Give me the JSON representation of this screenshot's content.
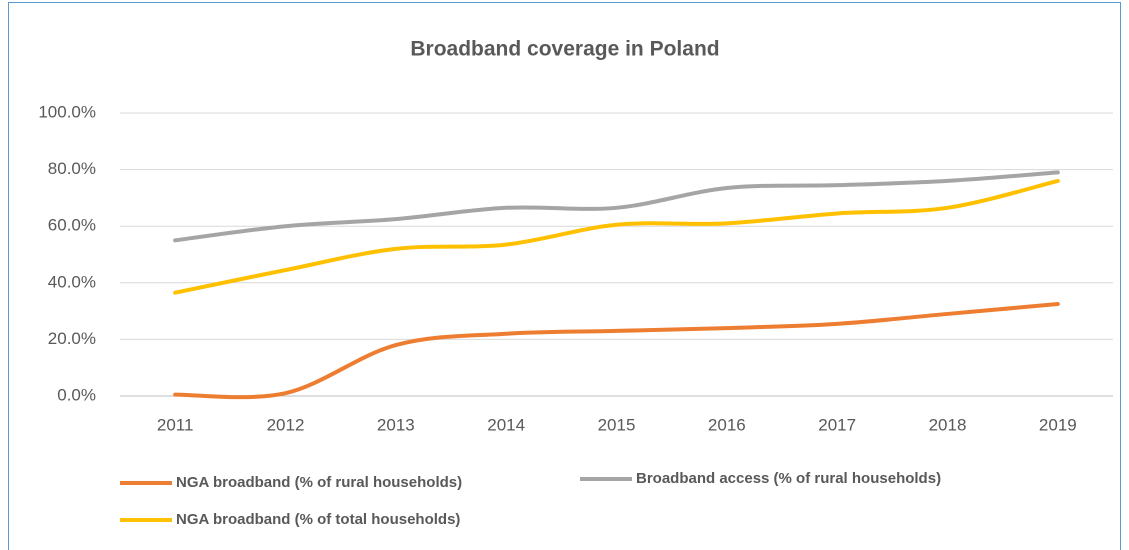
{
  "chart_data": {
    "type": "line",
    "title": "Broadband coverage in Poland",
    "categories": [
      "2011",
      "2012",
      "2013",
      "2014",
      "2015",
      "2016",
      "2017",
      "2018",
      "2019"
    ],
    "series": [
      {
        "name": "NGA broadband (% of rural households)",
        "color": "#ed7d31",
        "values": [
          0.5,
          1,
          18,
          22,
          23,
          24,
          25.5,
          29,
          32.5
        ]
      },
      {
        "name": "Broadband access (% of rural households)",
        "color": "#a5a5a5",
        "values": [
          55,
          60,
          62.5,
          66.5,
          66.5,
          73.5,
          74.5,
          76,
          79
        ]
      },
      {
        "name": "NGA broadband (% of total households)",
        "color": "#ffc000",
        "values": [
          36.5,
          44.5,
          52,
          53.5,
          60.5,
          61,
          64.5,
          66.5,
          76
        ]
      }
    ],
    "ylim": [
      0,
      100
    ],
    "yticks": [
      {
        "value": 0,
        "label": "0.0%"
      },
      {
        "value": 20,
        "label": "20.0%"
      },
      {
        "value": 40,
        "label": "40.0%"
      },
      {
        "value": 60,
        "label": "60.0%"
      },
      {
        "value": 80,
        "label": "80.0%"
      },
      {
        "value": 100,
        "label": "100.0%"
      }
    ],
    "grid": true,
    "smooth": true,
    "legend": "bottom"
  }
}
